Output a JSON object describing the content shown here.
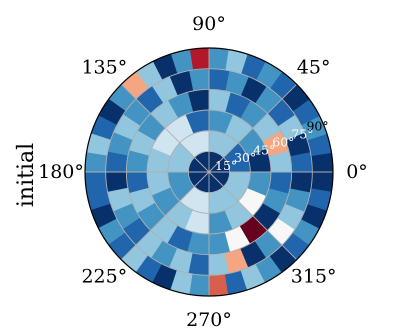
{
  "chart_data": {
    "type": "heatmap",
    "projection": "polar",
    "row_label": "initial",
    "theta_tick_labels": [
      "0°",
      "45°",
      "90°",
      "135°",
      "180°",
      "225°",
      "270°",
      "315°"
    ],
    "theta_ticks_deg": [
      0,
      45,
      90,
      135,
      180,
      225,
      270,
      315
    ],
    "r_tick_labels": [
      "15°",
      "30°",
      "45°",
      "60°",
      "75°",
      "90°"
    ],
    "r_ticks": [
      15,
      30,
      45,
      60,
      75,
      90
    ],
    "rlim": [
      0,
      90
    ],
    "grid": true,
    "colormap": "RdBu_r (dark blue = low, white = middle, dark red = high)",
    "color_levels": [
      "#08306b",
      "#2166ac",
      "#4393c3",
      "#92c5de",
      "#d1e5f0",
      "#f7f7f7",
      "#fddbc7",
      "#f4a582",
      "#d6604d",
      "#b2182b",
      "#67001f"
    ],
    "note": "cells are listed by ring; value is a colour level index 0 (darkest blue) to 10 (darkest red)",
    "rings": [
      {
        "r": [
          0,
          15
        ],
        "theta_step_deg": 180,
        "values": [
          0,
          0
        ]
      },
      {
        "r": [
          15,
          30
        ],
        "theta_step_deg": 45,
        "values": [
          1,
          3,
          4,
          3,
          2,
          4,
          3,
          3
        ]
      },
      {
        "r": [
          30,
          45
        ],
        "theta_step_deg": 22.5,
        "values": [
          0,
          2,
          3,
          2,
          1,
          4,
          4,
          3,
          3,
          2,
          3,
          4,
          2,
          3,
          5,
          2
        ]
      },
      {
        "r": [
          45,
          60
        ],
        "theta_step_deg": 15,
        "values": [
          3,
          7,
          3,
          2,
          1,
          3,
          0,
          2,
          3,
          2,
          3,
          2,
          1,
          3,
          2,
          3,
          1,
          2,
          2,
          5,
          10,
          0,
          2,
          1
        ]
      },
      {
        "r": [
          60,
          75
        ],
        "theta_step_deg": 11.25,
        "values": [
          1,
          0,
          3,
          1,
          2,
          0,
          2,
          1,
          2,
          0,
          3,
          1,
          2,
          3,
          2,
          1,
          0,
          3,
          2,
          1,
          3,
          2,
          3,
          1,
          3,
          7,
          0,
          2,
          5,
          3,
          2,
          0
        ]
      },
      {
        "r": [
          75,
          90
        ],
        "theta_step_deg": 9,
        "values": [
          0,
          1,
          2,
          1,
          0,
          1,
          2,
          1,
          3,
          2,
          9,
          2,
          0,
          3,
          7,
          2,
          0,
          1,
          3,
          2,
          1,
          1,
          0,
          2,
          1,
          3,
          1,
          0,
          3,
          2,
          8,
          1,
          3,
          2,
          0,
          1,
          2,
          0,
          1,
          0
        ]
      }
    ]
  }
}
